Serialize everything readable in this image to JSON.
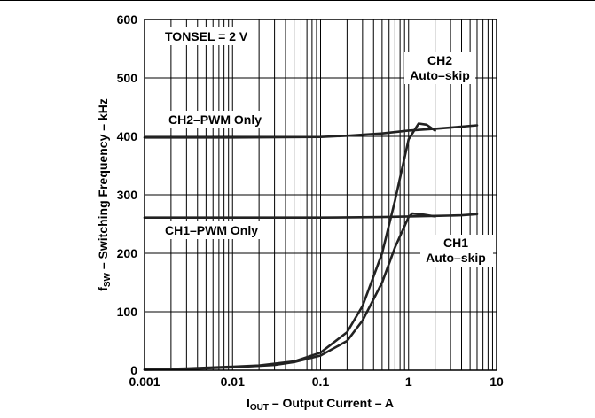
{
  "chart_data": {
    "type": "line",
    "xlabel": {
      "main": "I",
      "sub": "OUT",
      "rest": " – Output Current – A"
    },
    "ylabel": {
      "main": "f",
      "sub": "SW",
      "rest": " – Switching Frequency – kHz"
    },
    "x_scale": "log",
    "xlim": [
      0.001,
      10
    ],
    "ylim": [
      0,
      600
    ],
    "x_ticks": [
      0.001,
      0.01,
      0.1,
      1,
      10
    ],
    "x_tick_labels": [
      "0.001",
      "0.01",
      "0.1",
      "1",
      "10"
    ],
    "y_ticks": [
      0,
      100,
      200,
      300,
      400,
      500,
      600
    ],
    "y_tick_labels": [
      "0",
      "100",
      "200",
      "300",
      "400",
      "500",
      "600"
    ],
    "grid": true,
    "annotations": {
      "condition": "TONSEL = 2 V",
      "ch2_pwm": "CH2–PWM Only",
      "ch1_pwm": "CH1–PWM Only",
      "ch2_auto_line1": "CH2",
      "ch2_auto_line2": "Auto–skip",
      "ch1_auto_line1": "CH1",
      "ch1_auto_line2": "Auto–skip"
    },
    "series": [
      {
        "id": "ch2-pwm",
        "x": [
          0.001,
          0.01,
          0.1,
          0.2,
          0.5,
          1,
          2,
          3,
          6
        ],
        "y": [
          398,
          398,
          399,
          401,
          405,
          410,
          413,
          415,
          419
        ]
      },
      {
        "id": "ch1-pwm",
        "x": [
          0.001,
          0.01,
          0.1,
          0.5,
          1,
          2,
          4,
          6
        ],
        "y": [
          261,
          261,
          261,
          262,
          263,
          264,
          265,
          267
        ]
      },
      {
        "id": "ch2-auto",
        "x": [
          0.001,
          0.003,
          0.01,
          0.02,
          0.05,
          0.1,
          0.2,
          0.3,
          0.5,
          0.7,
          1,
          1.3,
          1.6,
          2
        ],
        "y": [
          1,
          3,
          6,
          8,
          15,
          30,
          65,
          110,
          200,
          290,
          395,
          422,
          420,
          410
        ]
      },
      {
        "id": "ch1-auto",
        "x": [
          0.001,
          0.003,
          0.01,
          0.03,
          0.05,
          0.1,
          0.2,
          0.3,
          0.5,
          0.7,
          1,
          1.1,
          1.5,
          2
        ],
        "y": [
          1,
          2,
          5,
          9,
          14,
          25,
          50,
          85,
          150,
          210,
          262,
          268,
          266,
          263
        ]
      }
    ]
  }
}
